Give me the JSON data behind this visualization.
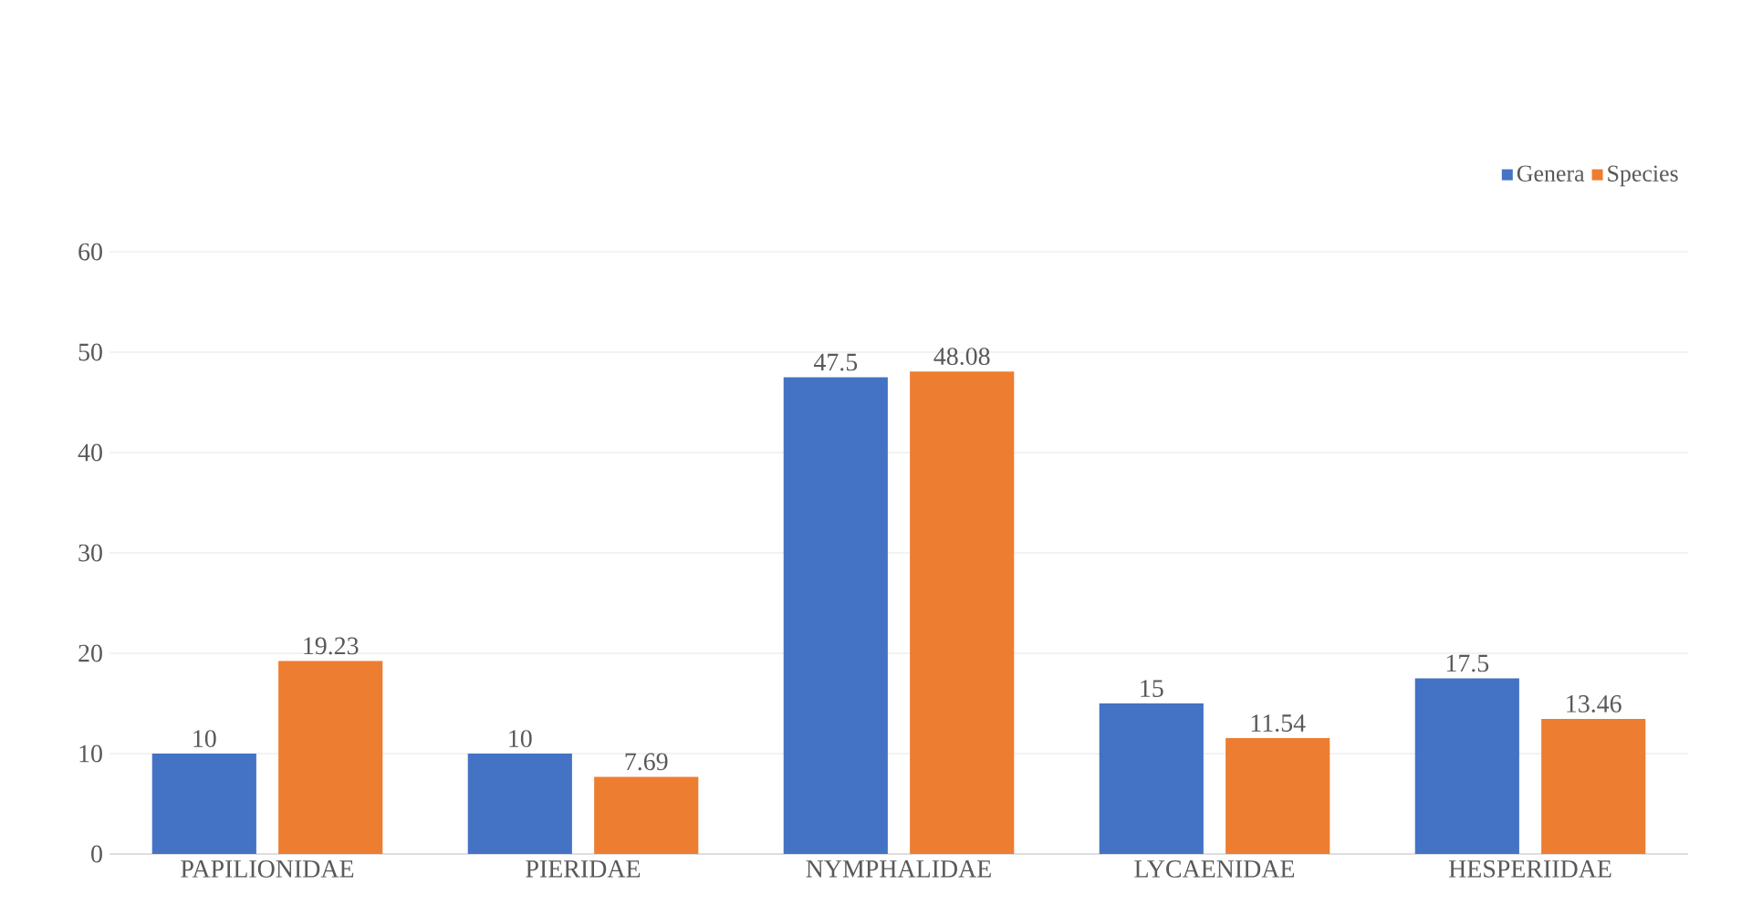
{
  "chart_data": {
    "type": "bar",
    "categories": [
      "PAPILIONIDAE",
      "PIERIDAE",
      "NYMPHALIDAE",
      "LYCAENIDAE",
      "HESPERIIDAE"
    ],
    "series": [
      {
        "name": "Genera",
        "color": "#4472c4",
        "values": [
          10,
          10,
          47.5,
          15,
          17.5
        ]
      },
      {
        "name": "Species",
        "color": "#ed7d31",
        "values": [
          19.23,
          7.69,
          48.08,
          11.54,
          13.46
        ]
      }
    ],
    "ylim": [
      0,
      60
    ],
    "yticks": [
      0,
      10,
      20,
      30,
      40,
      50,
      60
    ],
    "grid": "y",
    "legend": "top right",
    "data_labels": true
  }
}
